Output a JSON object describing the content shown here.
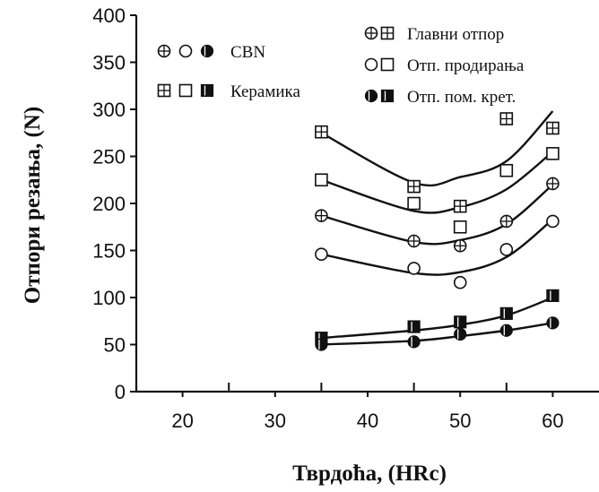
{
  "chart_data": {
    "type": "scatter",
    "title": "",
    "xlabel": "Тврдоћа, (HRc)",
    "ylabel": "Отпори резања, (N)",
    "xlim": [
      15,
      65
    ],
    "ylim": [
      0,
      400
    ],
    "xticks": [
      20,
      30,
      40,
      50,
      60
    ],
    "yticks": [
      0,
      50,
      100,
      150,
      200,
      250,
      300,
      350,
      400
    ],
    "grid": false,
    "legend_tools": [
      {
        "label": "CBN",
        "shape": "circle"
      },
      {
        "label": "Керамика",
        "shape": "square"
      }
    ],
    "legend_forces": [
      {
        "label": "Главни отпор",
        "style": "cross"
      },
      {
        "label": "Отп. продирања",
        "style": "open"
      },
      {
        "label": "Отп. пом. крет.",
        "style": "filled"
      }
    ],
    "series": [
      {
        "name": "Керамика — Главни отпор",
        "shape": "square",
        "style": "cross",
        "x": [
          35,
          45,
          50,
          55,
          60
        ],
        "y": [
          276,
          218,
          197,
          290,
          280
        ],
        "fit": [
          275,
          222,
          228,
          245,
          298
        ]
      },
      {
        "name": "Керамика — Отп. продирања",
        "shape": "square",
        "style": "open",
        "x": [
          35,
          45,
          50,
          55,
          60
        ],
        "y": [
          225,
          200,
          175,
          235,
          253
        ],
        "fit": [
          225,
          192,
          196,
          215,
          255
        ]
      },
      {
        "name": "CBN — Главни отпор",
        "shape": "circle",
        "style": "cross",
        "x": [
          35,
          45,
          50,
          55,
          60
        ],
        "y": [
          187,
          160,
          155,
          181,
          221
        ],
        "fit": [
          187,
          159,
          161,
          178,
          220
        ]
      },
      {
        "name": "CBN — Отп. продирања",
        "shape": "circle",
        "style": "open",
        "x": [
          35,
          45,
          50,
          55,
          60
        ],
        "y": [
          146,
          131,
          116,
          151,
          181
        ],
        "fit": [
          146,
          126,
          127,
          143,
          183
        ]
      },
      {
        "name": "Керамика — Отп. пом. крет.",
        "shape": "square",
        "style": "filled",
        "x": [
          35,
          45,
          50,
          55,
          60
        ],
        "y": [
          57,
          69,
          74,
          83,
          102
        ],
        "fit": [
          57,
          65,
          71,
          81,
          100
        ]
      },
      {
        "name": "CBN — Отп. пом. крет.",
        "shape": "circle",
        "style": "filled",
        "x": [
          35,
          45,
          50,
          55,
          60
        ],
        "y": [
          50,
          53,
          61,
          65,
          73
        ],
        "fit": [
          50,
          54,
          59,
          65,
          73
        ]
      }
    ]
  }
}
